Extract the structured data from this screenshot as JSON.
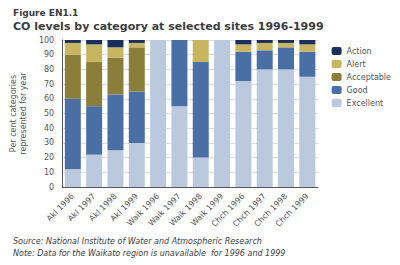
{
  "chart_data": {
    "type": "bar",
    "stacked": true,
    "subtitle": "Figure EN1.1",
    "title": "CO levels by category at selected sites 1996-1999",
    "ylabel": "Per cent categories\nrepresented for year",
    "annotations": [
      "Source: National Institute of Water and Atmospheric Research",
      "Note: Data for the Waikato region is unavailable  for 1996 and 1999"
    ],
    "categories": [
      "AkI 1996",
      "AkI 1997",
      "AkI 1998",
      "AkI 1999",
      "Waik 1996",
      "Waik 1997",
      "Waik 1998",
      "Waik 1999",
      "Chch 1996",
      "Chch 1997",
      "Chch 1998",
      "Chch 1999"
    ],
    "series": [
      {
        "name": "Excellent",
        "color": "#bbc9df",
        "values": [
          12,
          22,
          25,
          30,
          100,
          55,
          20,
          100,
          72,
          80,
          80,
          75
        ]
      },
      {
        "name": "Good",
        "color": "#4a6fa5",
        "values": [
          48,
          33,
          38,
          35,
          0,
          45,
          65,
          0,
          20,
          13,
          15,
          17
        ]
      },
      {
        "name": "Acceptable",
        "color": "#8b7d3a",
        "values": [
          30,
          30,
          25,
          30,
          0,
          0,
          0,
          0,
          0,
          0,
          0,
          0
        ]
      },
      {
        "name": "Alert",
        "color": "#c8b560",
        "values": [
          8,
          12,
          7,
          3,
          0,
          0,
          15,
          0,
          5,
          5,
          3,
          5
        ]
      },
      {
        "name": "Action",
        "color": "#1a2f5a",
        "values": [
          2,
          3,
          5,
          2,
          0,
          0,
          0,
          0,
          3,
          2,
          2,
          3
        ]
      }
    ],
    "ylim": [
      0,
      100
    ],
    "yticks": [
      0,
      10,
      20,
      30,
      40,
      50,
      60,
      70,
      80,
      90,
      100
    ],
    "grid": true,
    "legend": "right"
  }
}
